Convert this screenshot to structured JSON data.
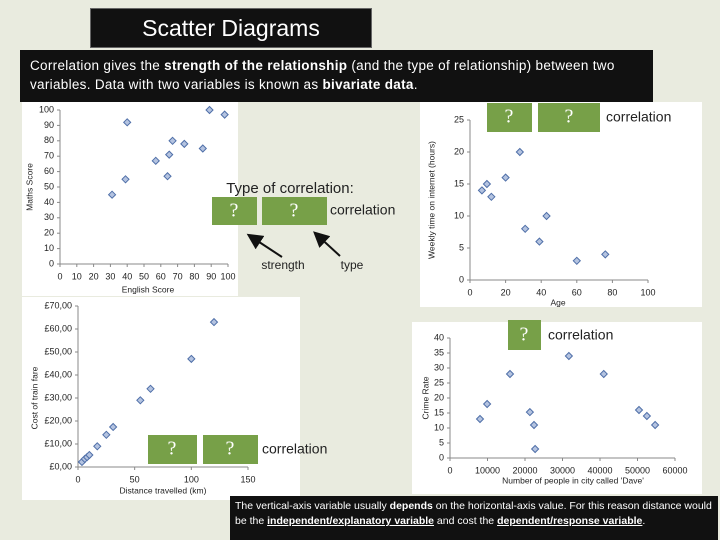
{
  "title": "Scatter Diagrams",
  "intro": [
    {
      "text": "Correlation gives the "
    },
    {
      "text": "strength of the relationship",
      "bold": true
    },
    {
      "text": " (and the type of relationship) between two variables. Data with two variables is known as "
    },
    {
      "text": "bivariate data",
      "bold": true
    },
    {
      "text": "."
    }
  ],
  "note": [
    {
      "text": "The vertical-axis variable usually "
    },
    {
      "text": "depends",
      "bold": true
    },
    {
      "text": " on the horizontal-axis value. For this reason distance would be the "
    },
    {
      "text": "independent/explanatory variable",
      "bold": true,
      "underline": true
    },
    {
      "text": " and cost the "
    },
    {
      "text": "dependent/response variable",
      "bold": true,
      "underline": true
    },
    {
      "text": "."
    }
  ],
  "chart_data": [
    {
      "type": "scatter",
      "xlabel": "English Score",
      "ylabel": "Maths Score",
      "color": "#4f6fa8",
      "x": [
        31,
        39,
        40,
        57,
        64,
        65,
        67,
        74,
        85,
        89,
        98
      ],
      "y": [
        45,
        55,
        92,
        67,
        57,
        71,
        80,
        78,
        75,
        100,
        97
      ],
      "xlim": [
        0,
        100
      ],
      "ylim": [
        0,
        100
      ],
      "xticks": [
        0,
        10,
        20,
        30,
        40,
        50,
        60,
        70,
        80,
        90,
        100
      ],
      "yticks": [
        0,
        10,
        20,
        30,
        40,
        50,
        60,
        70,
        80,
        90,
        100
      ]
    },
    {
      "type": "scatter",
      "xlabel": "Age",
      "ylabel": "Weekly time on internet (hours)",
      "color": "#4f6fa8",
      "x": [
        6.7,
        9.5,
        12,
        20,
        28,
        31,
        39,
        43,
        60,
        76
      ],
      "y": [
        14,
        15,
        13,
        16,
        20,
        8,
        6,
        10,
        3,
        4
      ],
      "xlim": [
        0,
        100
      ],
      "ylim": [
        0,
        25
      ],
      "xticks": [
        0,
        20,
        40,
        60,
        80,
        100
      ],
      "yticks": [
        0,
        5,
        10,
        15,
        20,
        25
      ]
    },
    {
      "type": "scatter",
      "xlabel": "Distance travelled (km)",
      "ylabel": "Cost of train fare",
      "color": "#4f6fa8",
      "x": [
        3.5,
        6,
        8,
        10,
        17,
        25,
        31,
        55,
        64,
        100,
        120
      ],
      "y": [
        2.2,
        3.5,
        4.3,
        5.2,
        9,
        14,
        17.4,
        29,
        34,
        47,
        63
      ],
      "xlim": [
        0,
        150
      ],
      "ylim": [
        0,
        70
      ],
      "xticks": [
        0,
        50,
        100,
        150
      ],
      "yticks": [
        {
          "value": 0,
          "label": "£0,00"
        },
        {
          "value": 10,
          "label": "£10,00"
        },
        {
          "value": 20,
          "label": "£20,00"
        },
        {
          "value": 30,
          "label": "£30,00"
        },
        {
          "value": 40,
          "label": "£40,00"
        },
        {
          "value": 50,
          "label": "£50,00"
        },
        {
          "value": 60,
          "label": "£60,00"
        },
        {
          "value": 70,
          "label": "£70,00"
        }
      ]
    },
    {
      "type": "scatter",
      "xlabel": "Number of people in city called 'Dave'",
      "ylabel": "Crime Rate",
      "color": "#4f6fa8",
      "x": [
        8000,
        9900,
        16000,
        21300,
        22400,
        22700,
        31700,
        41000,
        50400,
        52500,
        54700
      ],
      "y": [
        13,
        18,
        28,
        15.3,
        11,
        3,
        34,
        28,
        16,
        14,
        11
      ],
      "xlim": [
        0,
        60000
      ],
      "ylim": [
        0,
        40
      ],
      "xticks": [
        0,
        10000,
        20000,
        30000,
        40000,
        50000,
        60000
      ],
      "yticks": [
        0,
        5,
        10,
        15,
        20,
        25,
        30,
        35,
        40
      ]
    }
  ],
  "overlays": [
    {
      "heading": "Type of correlation:",
      "boxes": [
        "?",
        "?"
      ],
      "text": "correlation",
      "arrow_labels": [
        "strength",
        "type"
      ]
    },
    {
      "boxes": [
        "?",
        "?"
      ],
      "text": "correlation"
    },
    {
      "boxes": [
        "?",
        "?"
      ],
      "text": "correlation"
    },
    {
      "boxes": [
        "?"
      ],
      "text": "correlation"
    }
  ]
}
